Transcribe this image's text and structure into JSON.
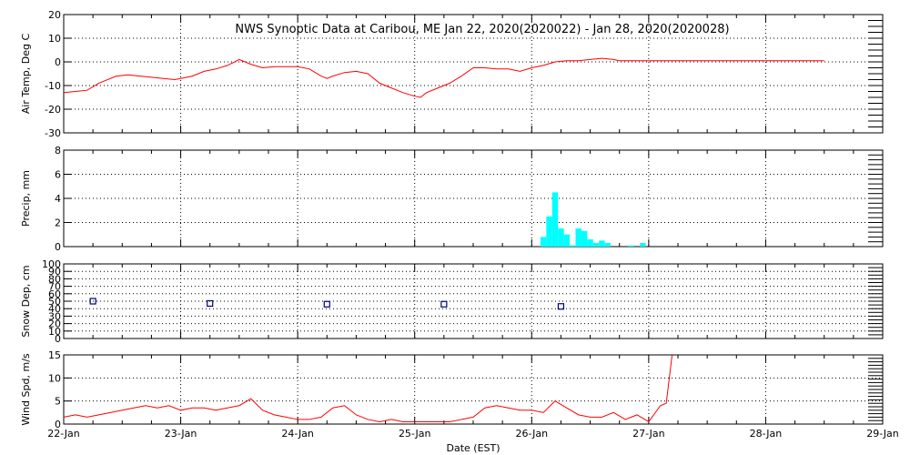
{
  "title": "NWS Synoptic Data at Caribou, ME   Jan 22, 2020(2020022) - Jan 28, 2020(2020028)",
  "xlabel": "Date (EST)",
  "x_tick_labels": [
    "22-Jan",
    "23-Jan",
    "24-Jan",
    "25-Jan",
    "26-Jan",
    "27-Jan",
    "28-Jan",
    "29-Jan"
  ],
  "colors": {
    "line": "#ff0000",
    "precip": "#00ffff",
    "snow_marker": "#000080",
    "grid": "#000000"
  },
  "chart_data": [
    {
      "type": "line",
      "ylabel": "Air Temp, Deg C",
      "ylim": [
        -30,
        20
      ],
      "y_ticks": [
        -30,
        -20,
        -10,
        0,
        10,
        20
      ],
      "xlim_days": [
        0,
        7
      ],
      "grid": true,
      "x": [
        0,
        0.1,
        0.2,
        0.3,
        0.45,
        0.55,
        0.65,
        0.75,
        0.85,
        0.95,
        1.0,
        1.1,
        1.2,
        1.3,
        1.4,
        1.5,
        1.55,
        1.6,
        1.7,
        1.8,
        1.9,
        2.0,
        2.1,
        2.2,
        2.25,
        2.3,
        2.4,
        2.5,
        2.6,
        2.7,
        2.75,
        2.8,
        2.9,
        3.0,
        3.05,
        3.1,
        3.2,
        3.3,
        3.4,
        3.5,
        3.6,
        3.7,
        3.8,
        3.9,
        4.0,
        4.1,
        4.2,
        4.3,
        4.4,
        4.5,
        4.6,
        4.7,
        4.75,
        4.8,
        4.9,
        5.0,
        5.5,
        6.0,
        6.5
      ],
      "y": [
        -13,
        -12.5,
        -12,
        -9,
        -6,
        -5.5,
        -6,
        -6.5,
        -7,
        -7.5,
        -7,
        -6,
        -4,
        -3,
        -1.5,
        1,
        0,
        -1,
        -2.5,
        -2,
        -2,
        -2,
        -3,
        -6,
        -7,
        -6,
        -4.5,
        -4,
        -5,
        -9,
        -10,
        -11,
        -13,
        -14.5,
        -15,
        -13,
        -11,
        -9,
        -6,
        -2.5,
        -2.5,
        -3,
        -3,
        -4,
        -2.5,
        -1.5,
        0,
        0.5,
        0.5,
        1,
        1.5,
        1,
        0.5,
        0.5,
        0.5,
        0.5,
        0.5,
        0.5,
        0.5
      ]
    },
    {
      "type": "bar",
      "ylabel": "Precip, mm",
      "ylim": [
        0,
        8
      ],
      "y_ticks": [
        0,
        2,
        4,
        6,
        8
      ],
      "xlim_days": [
        0,
        7
      ],
      "grid": true,
      "x": [
        4.1,
        4.15,
        4.2,
        4.25,
        4.3,
        4.35,
        4.4,
        4.45,
        4.5,
        4.55,
        4.6,
        4.65,
        4.85,
        4.95
      ],
      "values": [
        0.8,
        2.5,
        4.5,
        1.5,
        1.0,
        0.1,
        1.5,
        1.3,
        0.6,
        0.3,
        0.5,
        0.3,
        0.1,
        0.3
      ]
    },
    {
      "type": "scatter",
      "ylabel": "Snow Dep, cm",
      "ylim": [
        0,
        100
      ],
      "y_ticks": [
        0,
        10,
        20,
        30,
        40,
        50,
        60,
        70,
        80,
        90,
        100
      ],
      "xlim_days": [
        0,
        7
      ],
      "grid": true,
      "x": [
        0.25,
        1.25,
        2.25,
        3.25,
        4.25
      ],
      "y": [
        50,
        47,
        46,
        46,
        43
      ]
    },
    {
      "type": "line",
      "ylabel": "Wind Spd, m/s",
      "ylim": [
        0,
        15
      ],
      "y_ticks": [
        0,
        5,
        10,
        15
      ],
      "xlim_days": [
        0,
        7
      ],
      "grid": true,
      "x": [
        0,
        0.1,
        0.2,
        0.3,
        0.4,
        0.5,
        0.6,
        0.7,
        0.8,
        0.9,
        1.0,
        1.1,
        1.2,
        1.3,
        1.4,
        1.5,
        1.6,
        1.7,
        1.8,
        1.9,
        2.0,
        2.1,
        2.2,
        2.3,
        2.4,
        2.5,
        2.6,
        2.7,
        2.8,
        2.9,
        3.0,
        3.1,
        3.2,
        3.3,
        3.4,
        3.5,
        3.6,
        3.7,
        3.8,
        3.9,
        4.0,
        4.1,
        4.2,
        4.3,
        4.4,
        4.5,
        4.6,
        4.7,
        4.8,
        4.9,
        5.0,
        5.1,
        5.15,
        5.2
      ],
      "y": [
        1.5,
        2,
        1.5,
        2,
        2.5,
        3,
        3.5,
        4,
        3.5,
        4,
        3,
        3.5,
        3.5,
        3,
        3.5,
        4,
        5.5,
        3,
        2,
        1.5,
        1,
        1,
        1.5,
        3.5,
        4,
        2,
        1,
        0.5,
        1,
        0.5,
        0.5,
        0.5,
        0.5,
        0.5,
        1,
        1.5,
        3.5,
        4,
        3.5,
        3,
        3,
        2.5,
        5,
        3.5,
        2,
        1.5,
        1.5,
        2.5,
        1,
        2,
        0.5,
        4,
        4.5,
        15
      ]
    }
  ]
}
